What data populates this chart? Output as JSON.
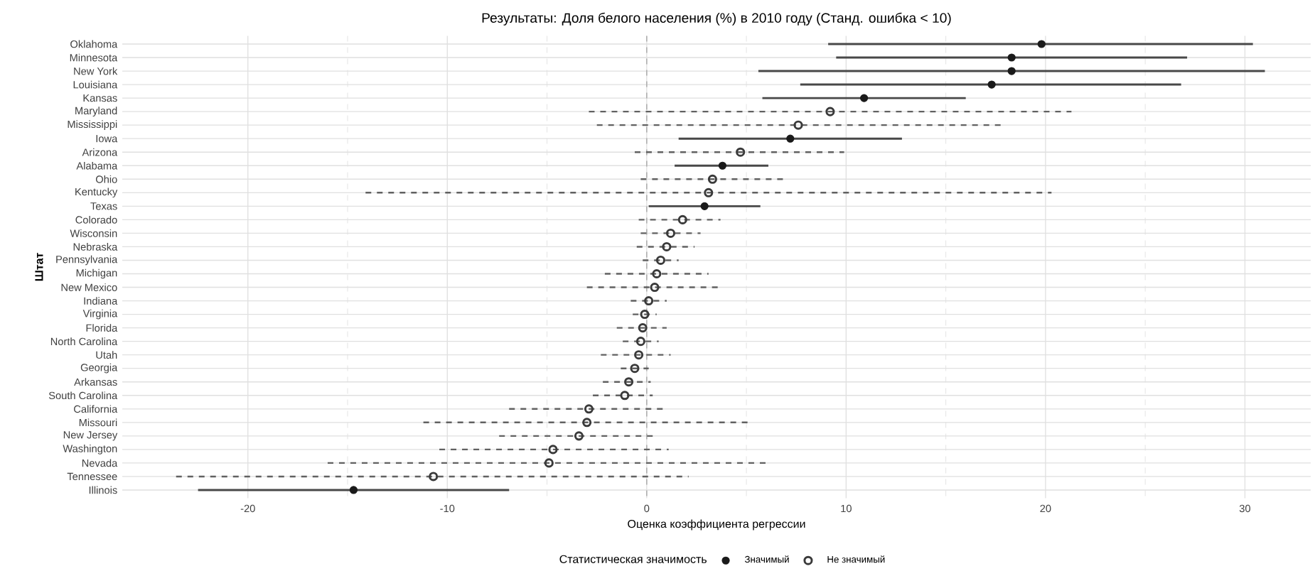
{
  "chart_data": {
    "type": "scatter",
    "orientation": "horizontal",
    "title": "Результаты: Доля белого населения (%) в 2010 году (Станд. ошибка < 10)",
    "xlabel": "Оценка коэффициента регрессии",
    "ylabel": "Штат",
    "legend_title": "Статистическая значимость",
    "categories": [
      "Oklahoma",
      "Minnesota",
      "New York",
      "Louisiana",
      "Kansas",
      "Maryland",
      "Mississippi",
      "Iowa",
      "Arizona",
      "Alabama",
      "Ohio",
      "Kentucky",
      "Texas",
      "Colorado",
      "Wisconsin",
      "Nebraska",
      "Pennsylvania",
      "Michigan",
      "New Mexico",
      "Indiana",
      "Virginia",
      "Florida",
      "North Carolina",
      "Utah",
      "Georgia",
      "Arkansas",
      "South Carolina",
      "California",
      "Missouri",
      "New Jersey",
      "Washington",
      "Nevada",
      "Tennessee",
      "Illinois"
    ],
    "xlim": [
      -26.3,
      33.3
    ],
    "xticks": [
      -20,
      -10,
      0,
      10,
      20,
      30
    ],
    "grid": true,
    "legend": "bottom",
    "marker": "circle",
    "ref_lines": [
      {
        "axis": "x",
        "value": 0,
        "color": "#b0b0b0",
        "line_style": "dashed"
      }
    ],
    "series": [
      {
        "name": "Значимый",
        "color": "#1a1a1a",
        "line_style": "solid",
        "values": [
          19.8,
          18.3,
          18.3,
          17.3,
          10.9,
          null,
          null,
          7.2,
          null,
          3.8,
          null,
          null,
          2.9,
          null,
          null,
          null,
          null,
          null,
          null,
          null,
          null,
          null,
          null,
          null,
          null,
          null,
          null,
          null,
          null,
          null,
          null,
          null,
          null,
          -14.7
        ],
        "errors": [
          [
            9.1,
            30.4
          ],
          [
            9.5,
            27.1
          ],
          [
            5.6,
            31.0
          ],
          [
            7.7,
            26.8
          ],
          [
            5.8,
            16.0
          ],
          null,
          null,
          [
            1.6,
            12.8
          ],
          null,
          [
            1.4,
            6.1
          ],
          null,
          null,
          [
            0.1,
            5.7
          ],
          null,
          null,
          null,
          null,
          null,
          null,
          null,
          null,
          null,
          null,
          null,
          null,
          null,
          null,
          null,
          null,
          null,
          null,
          null,
          null,
          [
            -22.5,
            -6.9
          ]
        ]
      },
      {
        "name": "Не значимый",
        "color": "#3a3a3a",
        "line_style": "dashed",
        "values": [
          null,
          null,
          null,
          null,
          null,
          9.2,
          7.6,
          null,
          4.7,
          null,
          3.3,
          3.1,
          null,
          1.8,
          1.2,
          1.0,
          0.7,
          0.5,
          0.4,
          0.1,
          -0.1,
          -0.2,
          -0.3,
          -0.4,
          -0.6,
          -0.9,
          -1.1,
          -2.9,
          -3.0,
          -3.4,
          -4.7,
          -4.9,
          -10.7,
          null
        ],
        "errors": [
          null,
          null,
          null,
          null,
          null,
          [
            -2.9,
            21.3
          ],
          [
            -2.5,
            17.8
          ],
          null,
          [
            -0.6,
            9.9
          ],
          null,
          [
            -0.3,
            7.0
          ],
          [
            -14.1,
            20.3
          ],
          null,
          [
            -0.4,
            3.7
          ],
          [
            -0.3,
            2.7
          ],
          [
            -0.5,
            2.4
          ],
          [
            -0.2,
            1.6
          ],
          [
            -2.1,
            3.1
          ],
          [
            -3.0,
            3.8
          ],
          [
            -0.8,
            1.0
          ],
          [
            -0.7,
            0.5
          ],
          [
            -1.5,
            1.0
          ],
          [
            -1.2,
            0.6
          ],
          [
            -2.3,
            1.2
          ],
          [
            -1.3,
            0.1
          ],
          [
            -2.2,
            0.2
          ],
          [
            -2.7,
            0.3
          ],
          [
            -6.9,
            1.0
          ],
          [
            -11.2,
            5.3
          ],
          [
            -7.4,
            0.4
          ],
          [
            -10.4,
            1.1
          ],
          [
            -16.0,
            6.0
          ],
          [
            -23.6,
            2.1
          ],
          null
        ]
      }
    ]
  }
}
